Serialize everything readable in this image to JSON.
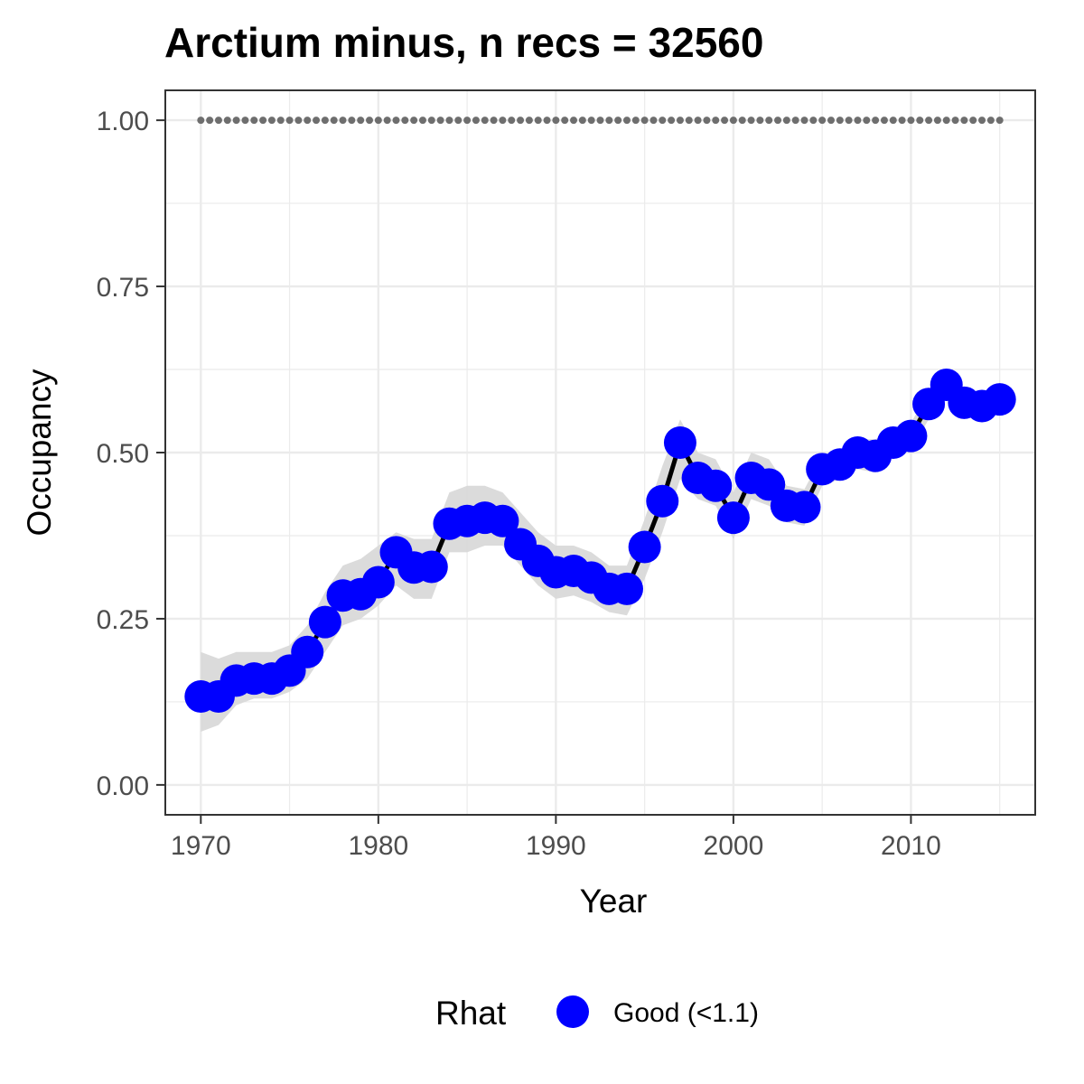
{
  "chart_data": {
    "type": "line",
    "title": "Arctium minus, n recs = 32560",
    "xlabel": "Year",
    "ylabel": "Occupancy",
    "xlim": [
      1968,
      2017
    ],
    "ylim": [
      -0.045,
      1.045
    ],
    "x_ticks": [
      1970,
      1980,
      1990,
      2000,
      2010
    ],
    "x_tick_labels": [
      "1970",
      "1980",
      "1990",
      "2000",
      "2010"
    ],
    "y_ticks": [
      0,
      0.25,
      0.5,
      0.75,
      1.0
    ],
    "y_tick_labels": [
      "0.00",
      "0.25",
      "0.50",
      "0.75",
      "1.00"
    ],
    "grid": true,
    "legend": {
      "title": "Rhat",
      "position": "bottom",
      "entries": [
        "Good (<1.1)"
      ]
    },
    "colors": {
      "points": "#0000ff",
      "line": "#000000",
      "ribbon": "#d9d9d9",
      "reference": "#6e6e6e",
      "grid": "#ebebeb",
      "border": "#333333"
    },
    "reference_line": {
      "y": 1.0,
      "style": "dotted"
    },
    "x": [
      1970,
      1971,
      1972,
      1973,
      1974,
      1975,
      1976,
      1977,
      1978,
      1979,
      1980,
      1981,
      1982,
      1983,
      1984,
      1985,
      1986,
      1987,
      1988,
      1989,
      1990,
      1991,
      1992,
      1993,
      1994,
      1995,
      1996,
      1997,
      1998,
      1999,
      2000,
      2001,
      2002,
      2003,
      2004,
      2005,
      2006,
      2007,
      2008,
      2009,
      2010,
      2011,
      2012,
      2013,
      2014,
      2015
    ],
    "series": [
      {
        "values": [
          0.133,
          0.133,
          0.157,
          0.16,
          0.16,
          0.172,
          0.2,
          0.245,
          0.285,
          0.287,
          0.305,
          0.35,
          0.327,
          0.328,
          0.393,
          0.397,
          0.402,
          0.397,
          0.362,
          0.337,
          0.32,
          0.322,
          0.312,
          0.295,
          0.295,
          0.358,
          0.427,
          0.515,
          0.462,
          0.45,
          0.402,
          0.462,
          0.452,
          0.42,
          0.418,
          0.475,
          0.482,
          0.5,
          0.495,
          0.515,
          0.525,
          0.573,
          0.602,
          0.575,
          0.57,
          0.58
        ],
        "lower": [
          0.08,
          0.09,
          0.12,
          0.13,
          0.13,
          0.14,
          0.16,
          0.2,
          0.24,
          0.25,
          0.27,
          0.3,
          0.28,
          0.28,
          0.35,
          0.35,
          0.36,
          0.36,
          0.33,
          0.3,
          0.28,
          0.285,
          0.275,
          0.26,
          0.255,
          0.31,
          0.38,
          0.46,
          0.43,
          0.42,
          0.37,
          0.43,
          0.42,
          0.395,
          0.39,
          0.45,
          0.46,
          0.475,
          0.47,
          0.495,
          0.505,
          0.55,
          0.58,
          0.56,
          0.555,
          0.565
        ],
        "upper": [
          0.2,
          0.19,
          0.2,
          0.2,
          0.2,
          0.21,
          0.24,
          0.29,
          0.33,
          0.34,
          0.36,
          0.38,
          0.37,
          0.37,
          0.44,
          0.45,
          0.45,
          0.44,
          0.41,
          0.38,
          0.36,
          0.36,
          0.35,
          0.33,
          0.33,
          0.4,
          0.48,
          0.55,
          0.5,
          0.49,
          0.44,
          0.5,
          0.49,
          0.45,
          0.445,
          0.495,
          0.5,
          0.52,
          0.52,
          0.535,
          0.545,
          0.59,
          0.615,
          0.595,
          0.585,
          0.595
        ]
      }
    ]
  }
}
